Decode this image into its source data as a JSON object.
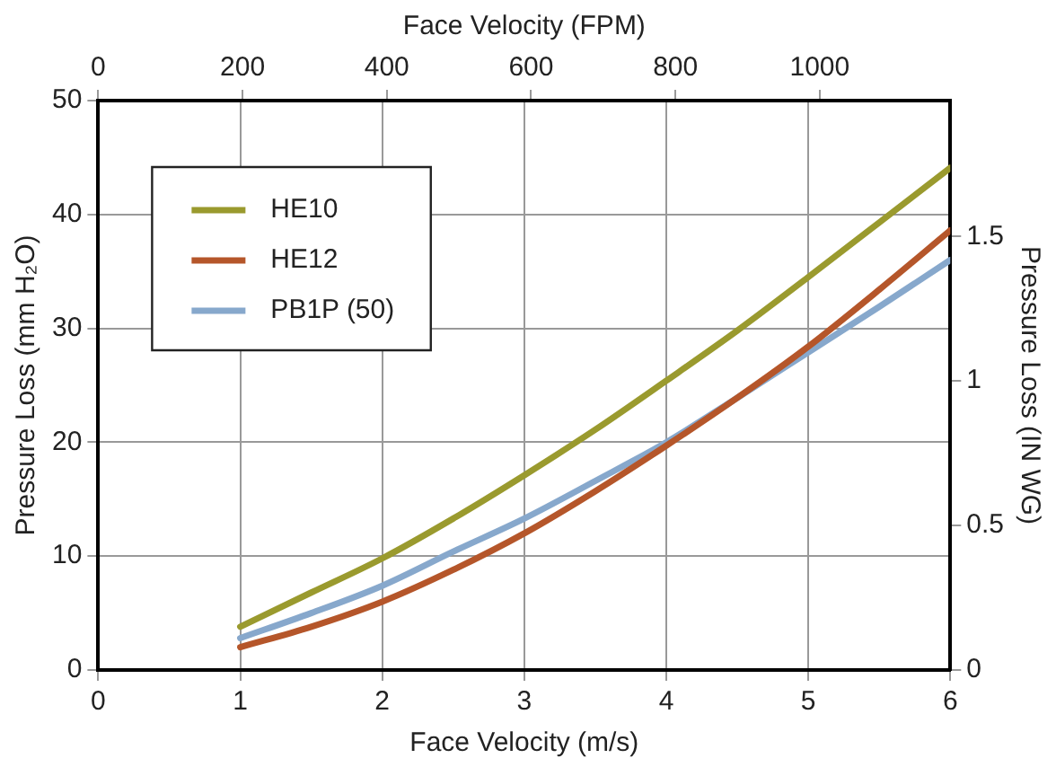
{
  "chart_data": {
    "type": "line",
    "xlabel": "Face Velocity (m/s)",
    "ylabel": "Pressure Loss (mm H₂O)",
    "y2label": "Pressure Loss (IN WG)",
    "x2label": "Face Velocity (FPM)",
    "x": [
      1,
      1.5,
      2,
      2.5,
      3,
      3.5,
      4,
      4.5,
      5,
      5.5,
      6
    ],
    "series": [
      {
        "name": "HE10",
        "color": "#9a9a2e",
        "values": [
          3.8,
          6.8,
          9.8,
          13.3,
          17.1,
          21.1,
          25.4,
          29.8,
          34.5,
          39.3,
          44.1
        ]
      },
      {
        "name": "HE12",
        "color": "#b5562a",
        "values": [
          2.0,
          3.8,
          6.0,
          8.8,
          12.0,
          15.7,
          19.7,
          23.9,
          28.4,
          33.4,
          38.6
        ]
      },
      {
        "name": "PB1P (50)",
        "color": "#87a8cc",
        "values": [
          2.8,
          5.0,
          7.4,
          10.4,
          13.3,
          16.6,
          20.0,
          23.9,
          27.9,
          31.9,
          36.0
        ]
      }
    ],
    "xlim": [
      0,
      6
    ],
    "xticks": [
      0,
      1,
      2,
      3,
      4,
      5,
      6
    ],
    "ylim": [
      0,
      50
    ],
    "yticks": [
      0,
      10,
      20,
      30,
      40,
      50
    ],
    "y2lim": [
      0,
      1.97
    ],
    "y2ticks": [
      0,
      0.5,
      1,
      1.5
    ],
    "x2lim": [
      0,
      1181
    ],
    "x2ticks": [
      0,
      200,
      400,
      600,
      800,
      1000
    ],
    "grid": true,
    "legend": "top left",
    "marker": "none",
    "line_style": "solid"
  }
}
